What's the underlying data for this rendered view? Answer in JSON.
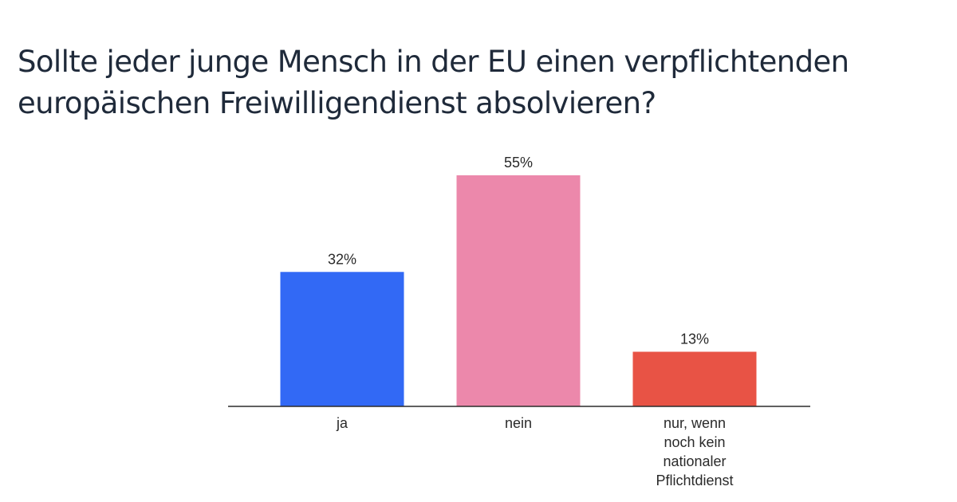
{
  "chart_data": {
    "type": "bar",
    "title": "Sollte jeder junge Mensch in der EU einen verpflichtenden europäischen Freiwilligendienst absolvieren?",
    "title_lines": [
      "Sollte jeder junge Mensch in der EU einen verpflichtenden",
      "europäischen Freiwilligendienst absolvieren?"
    ],
    "categories": [
      "ja",
      "nein",
      "nur, wenn noch kein nationaler Pflichtdienst"
    ],
    "category_lines": [
      [
        "ja"
      ],
      [
        "nein"
      ],
      [
        "nur, wenn",
        "noch kein",
        "nationaler",
        "Pflichtdienst"
      ]
    ],
    "values": [
      32,
      55,
      13
    ],
    "value_labels": [
      "32%",
      "55%",
      "13%"
    ],
    "colors": [
      "#3269f5",
      "#ec88ab",
      "#e85345"
    ],
    "ylim": [
      0,
      55
    ],
    "grid": false,
    "legend": "none"
  }
}
